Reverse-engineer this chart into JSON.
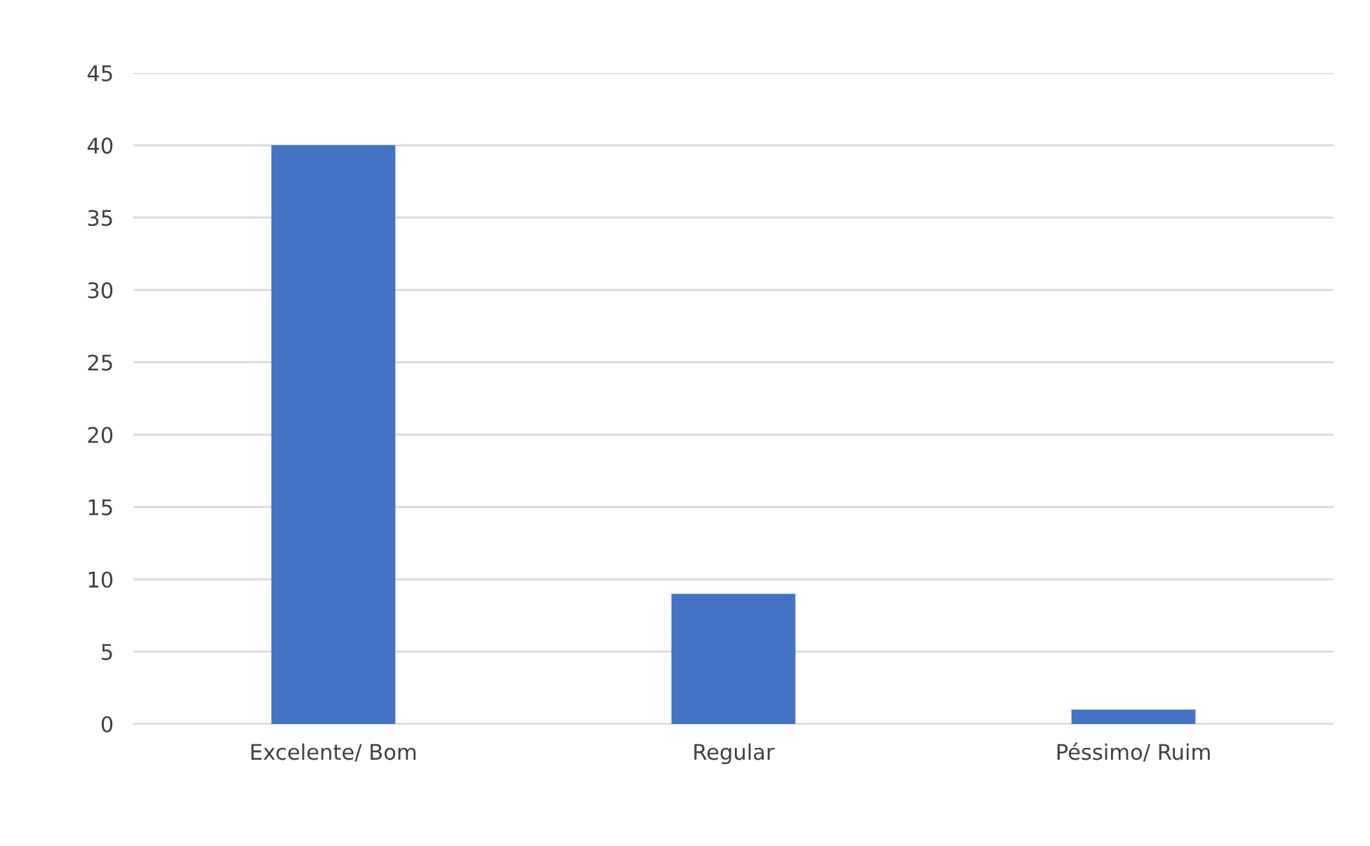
{
  "chart_data": {
    "type": "bar",
    "categories": [
      "Excelente/ Bom",
      "Regular",
      "Péssimo/ Ruim"
    ],
    "values": [
      40,
      9,
      1
    ],
    "color": "#4472c4",
    "ylim": [
      0,
      45
    ],
    "yticks": [
      0,
      5,
      10,
      15,
      20,
      25,
      30,
      35,
      40,
      45
    ],
    "grid": "y"
  }
}
